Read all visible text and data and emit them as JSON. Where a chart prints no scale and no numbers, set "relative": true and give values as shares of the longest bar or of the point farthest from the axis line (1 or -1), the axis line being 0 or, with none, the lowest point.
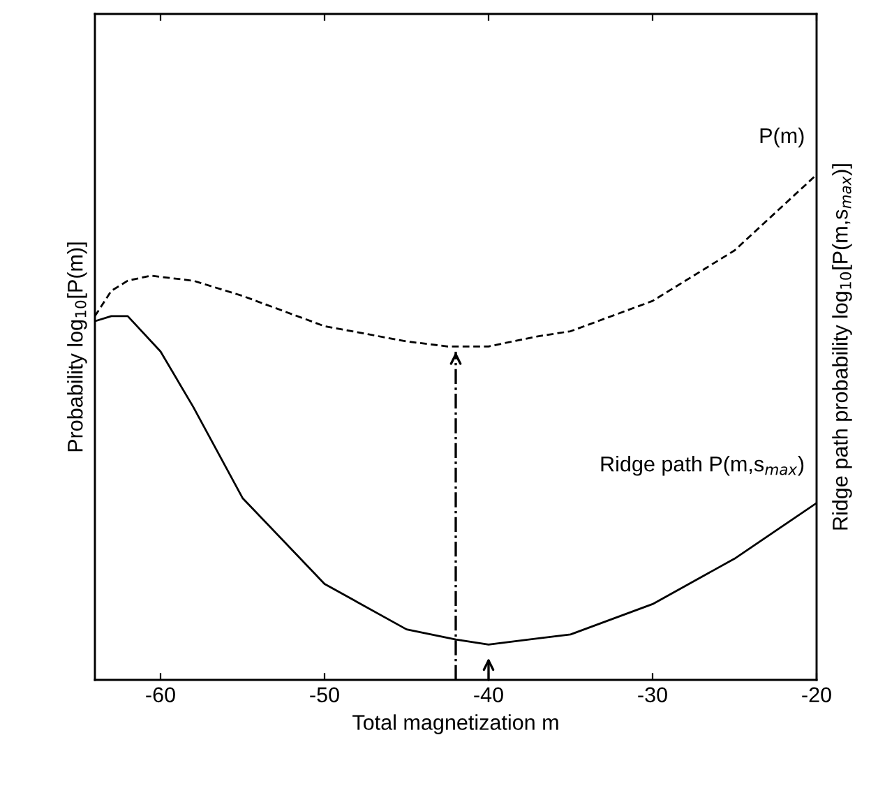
{
  "chart_data": {
    "type": "line",
    "relative": true,
    "xlabel": "Total magnetization m",
    "ylabel": "Probability log$_{10}$[P(m)]",
    "y2label": "Ridge path probability log$_{10}$[P(m,s$_{max}$)]",
    "xlim": [
      -64,
      -20
    ],
    "xticks": [
      -60,
      -50,
      -40,
      -30,
      -20
    ],
    "tick_labels": "x",
    "grid": false,
    "legend": false,
    "series": [
      {
        "name": "P(m)",
        "color": "#000000",
        "line_style": "dashed",
        "x": [
          -64,
          -63,
          -62,
          -60.6,
          -58,
          -55,
          -50,
          -45,
          -42.5,
          -40,
          -37,
          -35,
          -30,
          -25,
          -22,
          -20
        ],
        "values": [
          0.72,
          0.77,
          0.79,
          0.8,
          0.79,
          0.76,
          0.7,
          0.67,
          0.66,
          0.66,
          0.68,
          0.69,
          0.75,
          0.85,
          0.94,
          1
        ]
      },
      {
        "name": "Ridge path P(m,s$_{max}$)",
        "color": "#000000",
        "line_style": "solid",
        "x": [
          -64,
          -63,
          -62,
          -60,
          -58,
          -55,
          -50,
          -45,
          -42,
          -40,
          -35,
          -30,
          -25,
          -20
        ],
        "values": [
          0.71,
          0.72,
          0.72,
          0.65,
          0.54,
          0.36,
          0.19,
          0.1,
          0.08,
          0.07,
          0.09,
          0.15,
          0.24,
          0.35
        ]
      }
    ],
    "ref_lines": [
      {
        "axis": "x",
        "value": -42,
        "line_style": "dashdot",
        "color": "#000000"
      }
    ]
  }
}
